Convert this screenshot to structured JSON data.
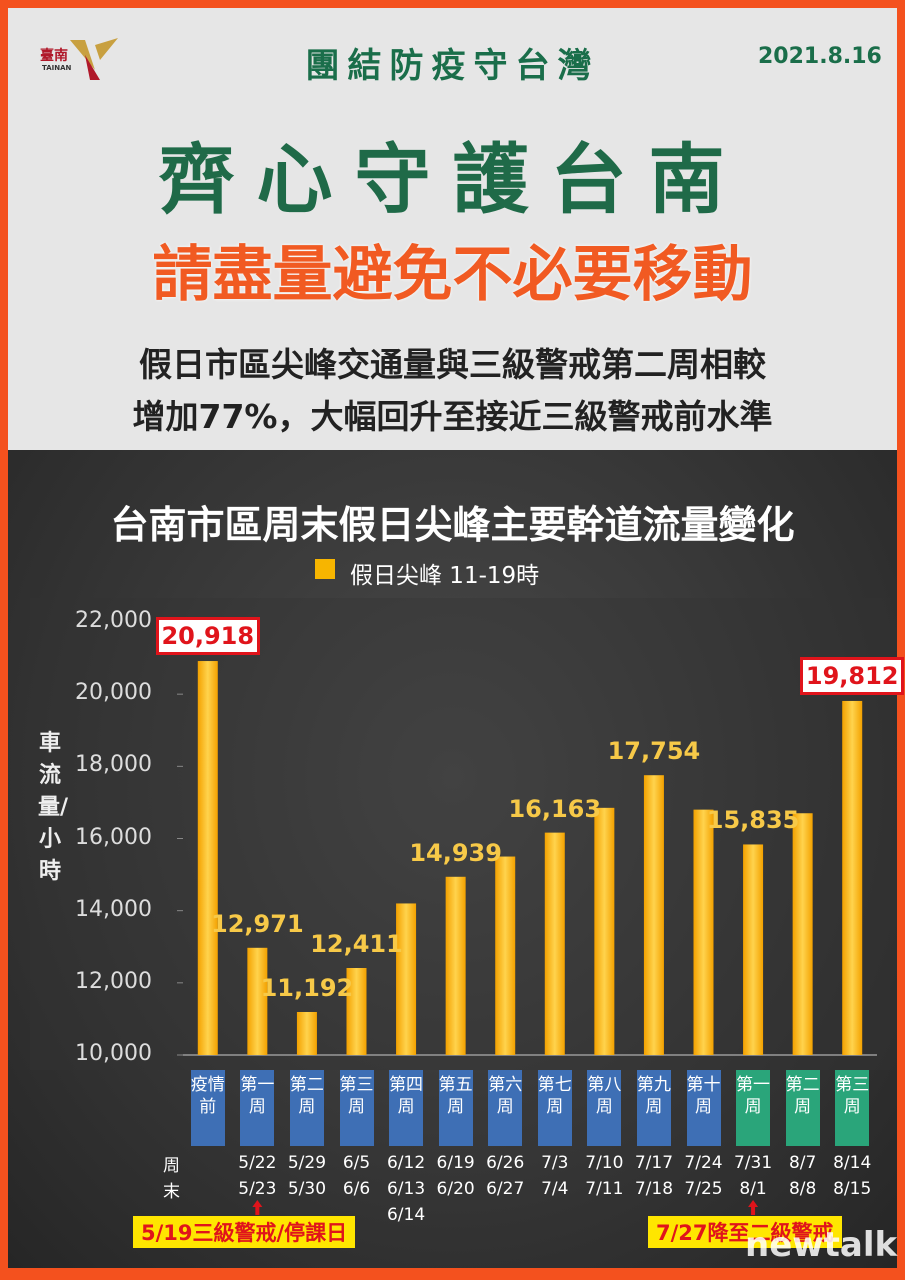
{
  "header": {
    "logo": "臺南",
    "logo_sub": "TAINAN",
    "slogan": "團結防疫守台灣",
    "date": "2021.8.16",
    "title": "齊心守護台南",
    "subtitle": "請盡量避免不必要移動",
    "summary": [
      "假日市區尖峰交通量與三級警戒第二周相較",
      "增加77%，大幅回升至接近三級警戒前水準"
    ]
  },
  "chart_data": {
    "type": "bar",
    "title": "台南市區周末假日尖峰主要幹道流量變化",
    "y_label": "車流量/小時",
    "categories": [
      "疫情前",
      "第一周",
      "第二周",
      "第三周",
      "第四周",
      "第五周",
      "第六周",
      "第七周",
      "第八周",
      "第九周",
      "第十周",
      "第一周",
      "第二周",
      "第三周"
    ],
    "category_colors": [
      "#3e6fb5",
      "#3e6fb5",
      "#3e6fb5",
      "#3e6fb5",
      "#3e6fb5",
      "#3e6fb5",
      "#3e6fb5",
      "#3e6fb5",
      "#3e6fb5",
      "#3e6fb5",
      "#3e6fb5",
      "#2aa57a",
      "#2aa57a",
      "#2aa57a"
    ],
    "dates_label": "周末",
    "dates": [
      [],
      [
        "5/22",
        "5/23"
      ],
      [
        "5/29",
        "5/30"
      ],
      [
        "6/5",
        "6/6"
      ],
      [
        "6/12",
        "6/13",
        "6/14"
      ],
      [
        "6/19",
        "6/20"
      ],
      [
        "6/26",
        "6/27"
      ],
      [
        "7/3",
        "7/4"
      ],
      [
        "7/10",
        "7/11"
      ],
      [
        "7/17",
        "7/18"
      ],
      [
        "7/24",
        "7/25"
      ],
      [
        "7/31",
        "8/1"
      ],
      [
        "8/7",
        "8/8"
      ],
      [
        "8/14",
        "8/15"
      ]
    ],
    "series": [
      {
        "name": "假日尖峰 11-19時",
        "color": "#f7b500",
        "values": [
          20918,
          12971,
          11192,
          12411,
          14200,
          14939,
          15500,
          16163,
          16850,
          17754,
          16800,
          15835,
          16700,
          19812
        ],
        "value_labels": [
          "20,918",
          "12,971",
          "11,192",
          "12,411",
          null,
          "14,939",
          null,
          "16,163",
          null,
          "17,754",
          null,
          "15,835",
          null,
          "19,812"
        ]
      }
    ],
    "ylim": [
      10000,
      22000
    ],
    "yticks": [
      {
        "value": 10000,
        "label": "10,000"
      },
      {
        "value": 12000,
        "label": "12,000"
      },
      {
        "value": 14000,
        "label": "14,000"
      },
      {
        "value": 16000,
        "label": "16,000"
      },
      {
        "value": 18000,
        "label": "18,000"
      },
      {
        "value": 20000,
        "label": "20,000"
      },
      {
        "value": 22000,
        "label": "22,000"
      }
    ],
    "annotations": [
      "5/19三級警戒/停課日",
      "7/27降至二級警戒"
    ],
    "watermark": "newtalk"
  }
}
